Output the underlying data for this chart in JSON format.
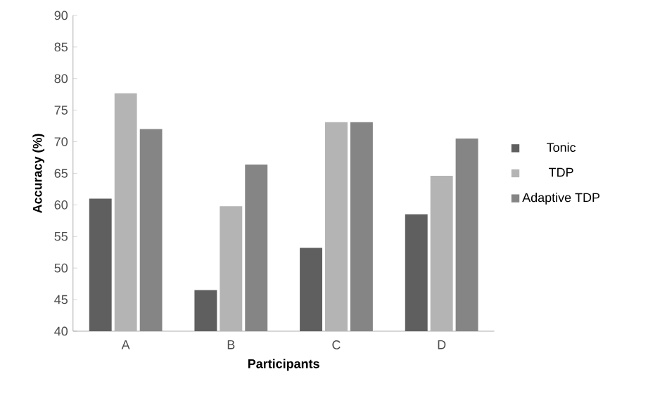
{
  "chart_data": {
    "type": "bar",
    "xlabel": "Participants",
    "ylabel": "Accuracy (%)",
    "categories": [
      "A",
      "B",
      "C",
      "D"
    ],
    "series": [
      {
        "name": "Tonic",
        "color": "#5f5f5f",
        "values": [
          61,
          46.5,
          53.2,
          58.5
        ]
      },
      {
        "name": "TDP",
        "color": "#b4b4b4",
        "values": [
          77.7,
          59.8,
          73.1,
          64.6
        ]
      },
      {
        "name": "Adaptive TDP",
        "color": "#858585",
        "values": [
          72,
          66.4,
          73.1,
          70.5
        ]
      }
    ],
    "ylim": [
      40,
      90
    ],
    "yticks": [
      40,
      45,
      50,
      55,
      60,
      65,
      70,
      75,
      80,
      85,
      90
    ],
    "grid": false,
    "legend": "right"
  }
}
